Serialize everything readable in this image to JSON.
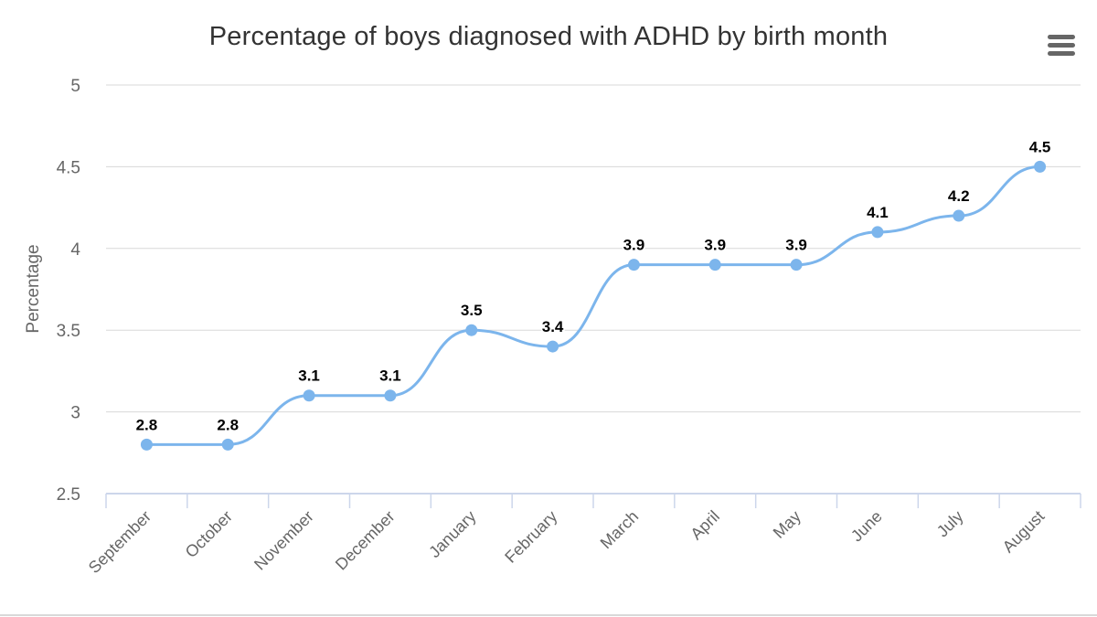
{
  "menu": {
    "icon": "hamburger-menu-icon"
  },
  "chart_data": {
    "type": "line",
    "title": "Percentage of boys diagnosed with ADHD by birth month",
    "xlabel": "",
    "ylabel": "Percentage",
    "categories": [
      "September",
      "October",
      "November",
      "December",
      "January",
      "February",
      "March",
      "April",
      "May",
      "June",
      "July",
      "August"
    ],
    "series": [
      {
        "name": "",
        "values": [
          2.8,
          2.8,
          3.1,
          3.1,
          3.5,
          3.4,
          3.9,
          3.9,
          3.9,
          4.1,
          4.2,
          4.5
        ]
      }
    ],
    "data_labels": [
      "2.8",
      "2.8",
      "3.1",
      "3.1",
      "3.5",
      "3.4",
      "3.9",
      "3.9",
      "3.9",
      "4.1",
      "4.2",
      "4.5"
    ],
    "y_ticks": [
      "2.5",
      "3",
      "3.5",
      "4",
      "4.5",
      "5"
    ],
    "ylim": [
      2.5,
      5
    ],
    "grid": true,
    "legend": "none",
    "colors": {
      "line": "#7cb5ec",
      "grid": "#d8d8d8",
      "axis": "#ccd6eb",
      "title": "#333333",
      "tick_label": "#666666"
    }
  }
}
